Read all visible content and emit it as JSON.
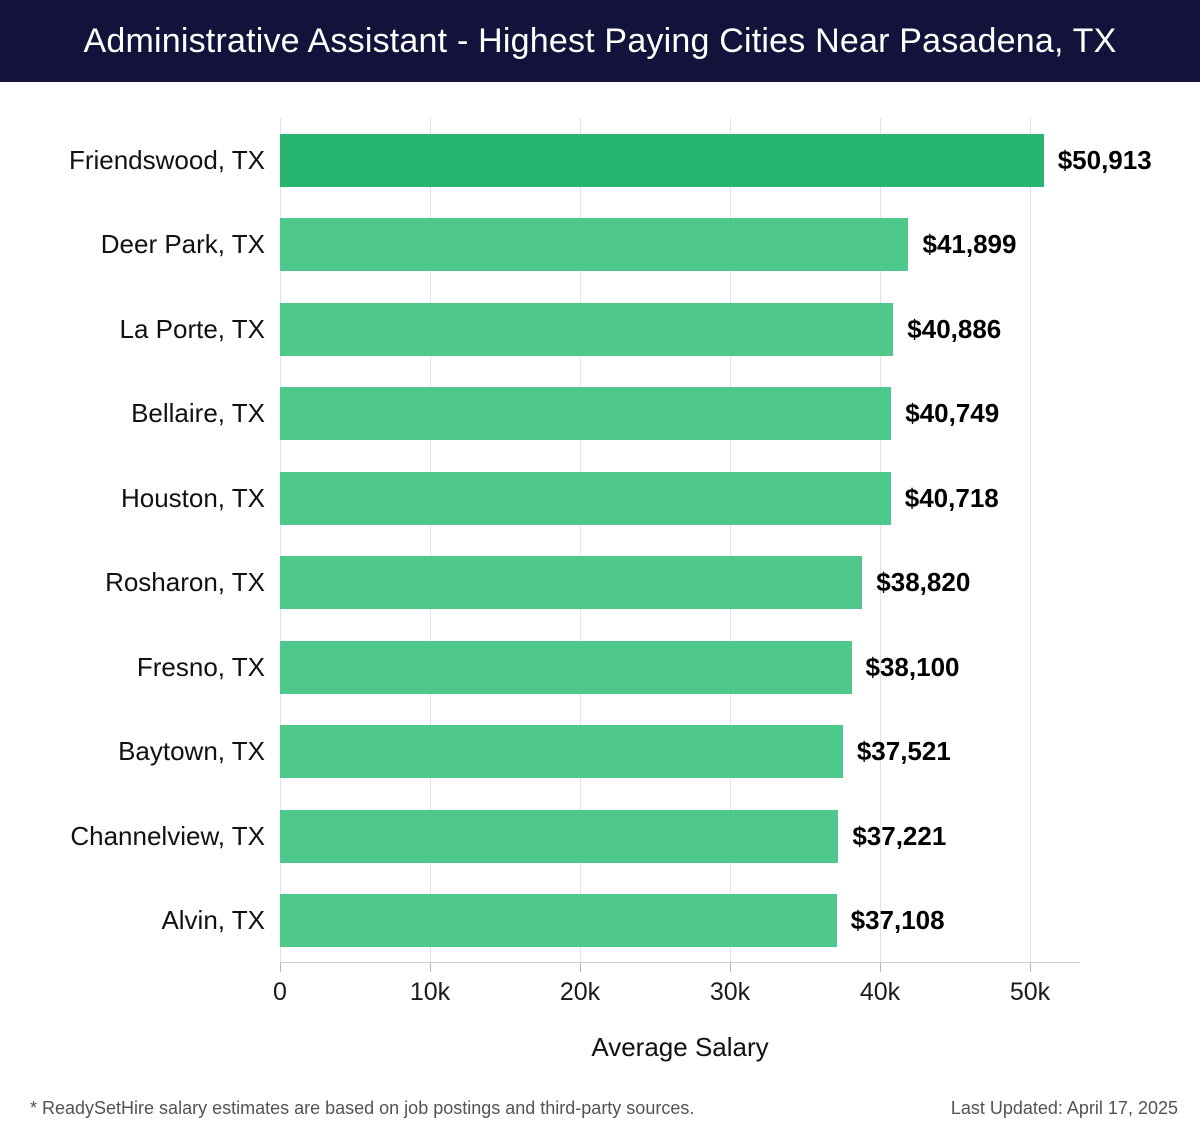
{
  "header": {
    "title": "Administrative Assistant - Highest Paying Cities Near Pasadena, TX",
    "bg_color": "#12123a",
    "text_color": "#ffffff"
  },
  "chart_data": {
    "type": "bar",
    "orientation": "horizontal",
    "title": "Administrative Assistant - Highest Paying Cities Near Pasadena, TX",
    "categories": [
      "Friendswood, TX",
      "Deer Park, TX",
      "La Porte, TX",
      "Bellaire, TX",
      "Houston, TX",
      "Rosharon, TX",
      "Fresno, TX",
      "Baytown, TX",
      "Channelview, TX",
      "Alvin, TX"
    ],
    "values": [
      50913,
      41899,
      40886,
      40749,
      40718,
      38820,
      38100,
      37521,
      37221,
      37108
    ],
    "value_labels": [
      "$50,913",
      "$41,899",
      "$40,886",
      "$40,749",
      "$40,718",
      "$38,820",
      "$38,100",
      "$37,521",
      "$37,221",
      "$37,108"
    ],
    "xlabel": "Average Salary",
    "ylabel": "",
    "x_ticks": [
      "0",
      "10k",
      "20k",
      "30k",
      "40k",
      "50k"
    ],
    "x_tick_values": [
      0,
      10000,
      20000,
      30000,
      40000,
      50000
    ],
    "xlim": [
      0,
      53333
    ],
    "grid": true,
    "legend": "none",
    "highlight_index": 0,
    "colors": {
      "highlight": "#28b571",
      "normal": "#4fc88c",
      "gridline": "#e2e2e2",
      "axis_line": "#cfcfcf"
    }
  },
  "footer": {
    "note": "* ReadySetHire salary estimates are based on job postings and third-party sources.",
    "last_updated": "Last Updated: April 17, 2025"
  }
}
